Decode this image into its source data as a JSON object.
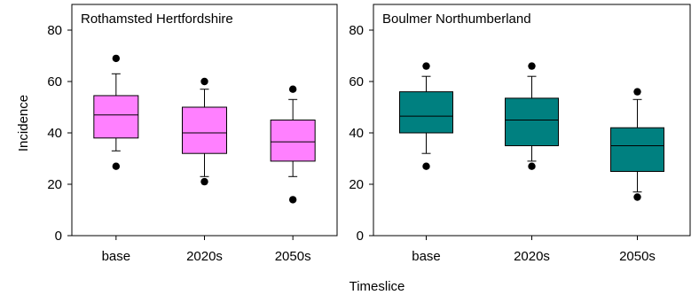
{
  "chart_data": {
    "type": "box",
    "ylabel": "Incidence",
    "xlabel": "Timeslice",
    "ylim": [
      0,
      90
    ],
    "yticks": [
      0,
      20,
      40,
      60,
      80
    ],
    "categories": [
      "base",
      "2020s",
      "2050s"
    ],
    "panels": [
      {
        "title": "Rothamsted Hertfordshire",
        "color": "#ff80ff",
        "boxes": [
          {
            "category": "base",
            "whisker_low": 33,
            "q1": 38,
            "median": 47,
            "q3": 54.5,
            "whisker_high": 63,
            "outliers": [
              27,
              69
            ]
          },
          {
            "category": "2020s",
            "whisker_low": 23,
            "q1": 32,
            "median": 40,
            "q3": 50,
            "whisker_high": 57,
            "outliers": [
              21,
              60
            ]
          },
          {
            "category": "2050s",
            "whisker_low": 23,
            "q1": 29,
            "median": 36.5,
            "q3": 45,
            "whisker_high": 53,
            "outliers": [
              14,
              57
            ]
          }
        ]
      },
      {
        "title": "Boulmer Northumberland",
        "color": "#008080",
        "boxes": [
          {
            "category": "base",
            "whisker_low": 32,
            "q1": 40,
            "median": 46.5,
            "q3": 56,
            "whisker_high": 62,
            "outliers": [
              27,
              66
            ]
          },
          {
            "category": "2020s",
            "whisker_low": 29,
            "q1": 35,
            "median": 45,
            "q3": 53.5,
            "whisker_high": 62,
            "outliers": [
              27,
              66
            ]
          },
          {
            "category": "2050s",
            "whisker_low": 17,
            "q1": 25,
            "median": 35,
            "q3": 42,
            "whisker_high": 53,
            "outliers": [
              15,
              56
            ]
          }
        ]
      }
    ]
  }
}
